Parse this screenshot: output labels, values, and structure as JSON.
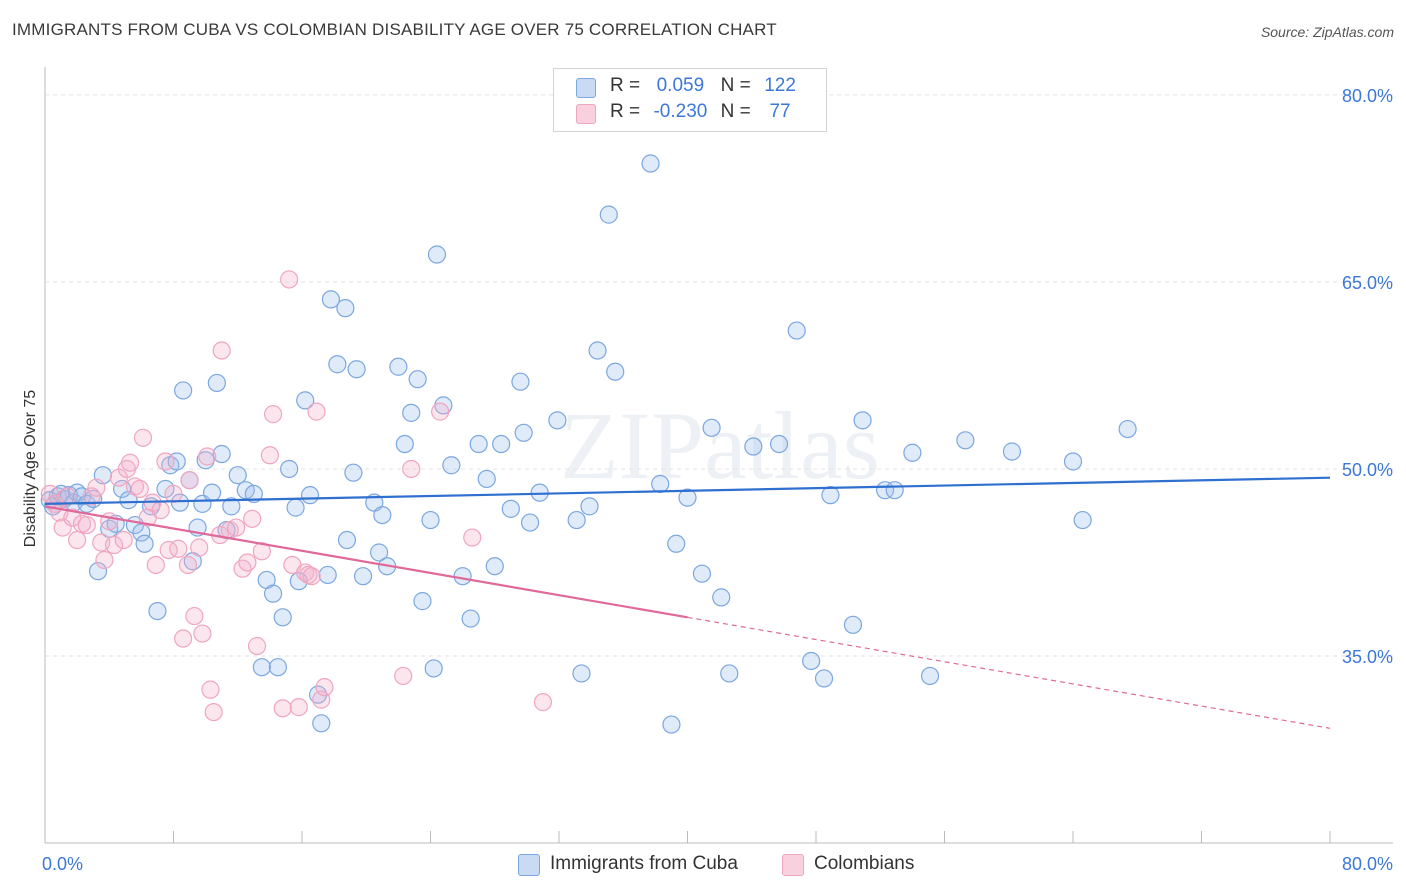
{
  "chart_data": {
    "type": "scatter",
    "title": "IMMIGRANTS FROM CUBA VS COLOMBIAN DISABILITY AGE OVER 75 CORRELATION CHART",
    "source": "Source: ZipAtlas.com",
    "watermark": "ZIPatlas",
    "xlabel": "",
    "ylabel": "Disability Age Over 75",
    "xlim": [
      0,
      80
    ],
    "ylim": [
      20,
      82
    ],
    "x_tick_labels": [
      "0.0%",
      "80.0%"
    ],
    "y_ticks": [
      {
        "value": 80,
        "label": "80.0%"
      },
      {
        "value": 65,
        "label": "65.0%"
      },
      {
        "value": 50,
        "label": "50.0%"
      },
      {
        "value": 35,
        "label": "35.0%"
      }
    ],
    "legend": [
      {
        "r_label": "R =",
        "r_value": "0.059",
        "n_label": "N =",
        "n_value": "122"
      },
      {
        "r_label": "R =",
        "r_value": "-0.230",
        "n_label": "N =",
        "n_value": "77"
      }
    ],
    "series": [
      {
        "name": "Immigrants from Cuba",
        "color": "#7ba7e0",
        "line_color": "#2f6fcf",
        "trend": {
          "x0": 0,
          "y0": 47.2,
          "x1": 80,
          "y1": 49.3,
          "solid_until": 80
        },
        "points": [
          [
            0.3,
            47.5
          ],
          [
            0.5,
            47.0
          ],
          [
            0.8,
            47.8
          ],
          [
            1.0,
            48.0
          ],
          [
            1.2,
            47.6
          ],
          [
            1.5,
            47.9
          ],
          [
            1.8,
            47.3
          ],
          [
            2.0,
            48.1
          ],
          [
            2.3,
            47.8
          ],
          [
            2.6,
            47.2
          ],
          [
            3.0,
            47.6
          ],
          [
            3.3,
            41.8
          ],
          [
            3.6,
            49.5
          ],
          [
            4.0,
            45.2
          ],
          [
            4.4,
            45.6
          ],
          [
            4.8,
            48.4
          ],
          [
            5.2,
            47.5
          ],
          [
            5.6,
            45.5
          ],
          [
            6.0,
            44.9
          ],
          [
            6.2,
            44.0
          ],
          [
            6.6,
            47.0
          ],
          [
            7.0,
            38.6
          ],
          [
            7.5,
            48.4
          ],
          [
            7.8,
            50.3
          ],
          [
            8.2,
            50.6
          ],
          [
            8.4,
            47.3
          ],
          [
            8.6,
            56.3
          ],
          [
            9.0,
            49.1
          ],
          [
            9.2,
            42.6
          ],
          [
            9.5,
            45.3
          ],
          [
            9.8,
            47.2
          ],
          [
            10.0,
            50.7
          ],
          [
            10.4,
            48.1
          ],
          [
            10.7,
            56.9
          ],
          [
            11.0,
            51.2
          ],
          [
            11.3,
            45.1
          ],
          [
            11.6,
            47.0
          ],
          [
            12.0,
            49.5
          ],
          [
            12.5,
            48.3
          ],
          [
            13.0,
            48.0
          ],
          [
            13.5,
            34.1
          ],
          [
            13.8,
            41.1
          ],
          [
            14.2,
            40.0
          ],
          [
            14.5,
            34.1
          ],
          [
            14.8,
            38.1
          ],
          [
            15.2,
            50.0
          ],
          [
            15.6,
            46.9
          ],
          [
            15.8,
            41.0
          ],
          [
            16.2,
            55.5
          ],
          [
            16.5,
            47.9
          ],
          [
            17.0,
            31.9
          ],
          [
            17.2,
            29.6
          ],
          [
            17.6,
            41.5
          ],
          [
            17.8,
            63.6
          ],
          [
            18.2,
            58.4
          ],
          [
            18.7,
            62.9
          ],
          [
            18.8,
            44.3
          ],
          [
            19.2,
            49.7
          ],
          [
            19.4,
            58.0
          ],
          [
            19.8,
            41.4
          ],
          [
            20.5,
            47.3
          ],
          [
            20.8,
            43.3
          ],
          [
            21.0,
            46.3
          ],
          [
            21.3,
            42.2
          ],
          [
            22.0,
            58.2
          ],
          [
            22.4,
            52.0
          ],
          [
            22.8,
            54.5
          ],
          [
            23.2,
            57.2
          ],
          [
            23.5,
            39.4
          ],
          [
            24.0,
            45.9
          ],
          [
            24.2,
            34.0
          ],
          [
            24.4,
            67.2
          ],
          [
            24.8,
            55.1
          ],
          [
            25.3,
            50.3
          ],
          [
            26.0,
            41.4
          ],
          [
            26.5,
            38.0
          ],
          [
            27.0,
            52.0
          ],
          [
            27.5,
            49.2
          ],
          [
            28.0,
            42.2
          ],
          [
            28.4,
            52.0
          ],
          [
            29.0,
            46.8
          ],
          [
            29.6,
            57.0
          ],
          [
            29.8,
            52.9
          ],
          [
            30.2,
            45.7
          ],
          [
            30.8,
            48.1
          ],
          [
            31.9,
            53.9
          ],
          [
            33.1,
            45.9
          ],
          [
            33.4,
            33.6
          ],
          [
            33.9,
            47.0
          ],
          [
            34.4,
            59.5
          ],
          [
            35.1,
            70.4
          ],
          [
            35.5,
            57.8
          ],
          [
            37.7,
            74.5
          ],
          [
            38.3,
            48.8
          ],
          [
            39.0,
            29.5
          ],
          [
            39.3,
            44.0
          ],
          [
            40.0,
            47.7
          ],
          [
            40.9,
            41.6
          ],
          [
            41.5,
            53.3
          ],
          [
            42.1,
            39.7
          ],
          [
            42.6,
            33.6
          ],
          [
            44.1,
            51.8
          ],
          [
            45.7,
            52.0
          ],
          [
            46.8,
            61.1
          ],
          [
            47.7,
            34.6
          ],
          [
            48.5,
            33.2
          ],
          [
            48.9,
            47.9
          ],
          [
            50.3,
            37.5
          ],
          [
            50.9,
            53.9
          ],
          [
            52.3,
            48.3
          ],
          [
            52.9,
            48.3
          ],
          [
            54.0,
            51.3
          ],
          [
            55.1,
            33.4
          ],
          [
            57.3,
            52.3
          ],
          [
            60.2,
            51.4
          ],
          [
            64.0,
            50.6
          ],
          [
            64.6,
            45.9
          ],
          [
            67.4,
            53.2
          ]
        ]
      },
      {
        "name": "Colombians",
        "color": "#f0a5c0",
        "line_color": "#e0689a",
        "trend": {
          "x0": 0,
          "y0": 47.0,
          "x1": 80,
          "y1": 29.2,
          "solid_until": 40
        },
        "points": [
          [
            0.3,
            48.0
          ],
          [
            0.6,
            47.2
          ],
          [
            0.9,
            46.5
          ],
          [
            1.1,
            45.3
          ],
          [
            1.4,
            47.8
          ],
          [
            1.7,
            46.1
          ],
          [
            2.0,
            44.3
          ],
          [
            2.3,
            45.6
          ],
          [
            2.6,
            45.5
          ],
          [
            2.9,
            47.8
          ],
          [
            3.2,
            48.5
          ],
          [
            3.5,
            44.1
          ],
          [
            3.7,
            42.7
          ],
          [
            4.0,
            45.8
          ],
          [
            4.3,
            43.9
          ],
          [
            4.6,
            49.3
          ],
          [
            4.9,
            44.3
          ],
          [
            5.1,
            50.0
          ],
          [
            5.3,
            50.5
          ],
          [
            5.6,
            48.6
          ],
          [
            5.9,
            48.4
          ],
          [
            6.1,
            52.5
          ],
          [
            6.4,
            46.1
          ],
          [
            6.7,
            47.3
          ],
          [
            6.9,
            42.3
          ],
          [
            7.2,
            46.7
          ],
          [
            7.5,
            50.6
          ],
          [
            7.7,
            43.5
          ],
          [
            8.0,
            48.0
          ],
          [
            8.3,
            43.6
          ],
          [
            8.6,
            36.4
          ],
          [
            8.9,
            42.3
          ],
          [
            9.0,
            49.1
          ],
          [
            9.3,
            38.2
          ],
          [
            9.6,
            43.7
          ],
          [
            9.8,
            36.8
          ],
          [
            10.1,
            51.0
          ],
          [
            10.3,
            32.3
          ],
          [
            10.5,
            30.5
          ],
          [
            10.9,
            44.7
          ],
          [
            11.0,
            59.5
          ],
          [
            11.5,
            45.1
          ],
          [
            11.9,
            45.3
          ],
          [
            12.3,
            42.0
          ],
          [
            12.6,
            42.5
          ],
          [
            12.9,
            46.0
          ],
          [
            13.2,
            35.8
          ],
          [
            13.5,
            43.4
          ],
          [
            14.0,
            51.1
          ],
          [
            14.2,
            54.4
          ],
          [
            14.8,
            30.8
          ],
          [
            15.2,
            65.2
          ],
          [
            15.4,
            42.3
          ],
          [
            15.8,
            30.9
          ],
          [
            16.2,
            41.7
          ],
          [
            16.4,
            41.5
          ],
          [
            16.6,
            41.4
          ],
          [
            16.9,
            54.6
          ],
          [
            17.2,
            31.5
          ],
          [
            17.4,
            32.5
          ],
          [
            22.3,
            33.4
          ],
          [
            22.8,
            50.0
          ],
          [
            24.6,
            54.6
          ],
          [
            26.6,
            44.5
          ],
          [
            31.0,
            31.3
          ]
        ]
      }
    ]
  },
  "bottom_legend": [
    "Immigrants from Cuba",
    "Colombians"
  ]
}
